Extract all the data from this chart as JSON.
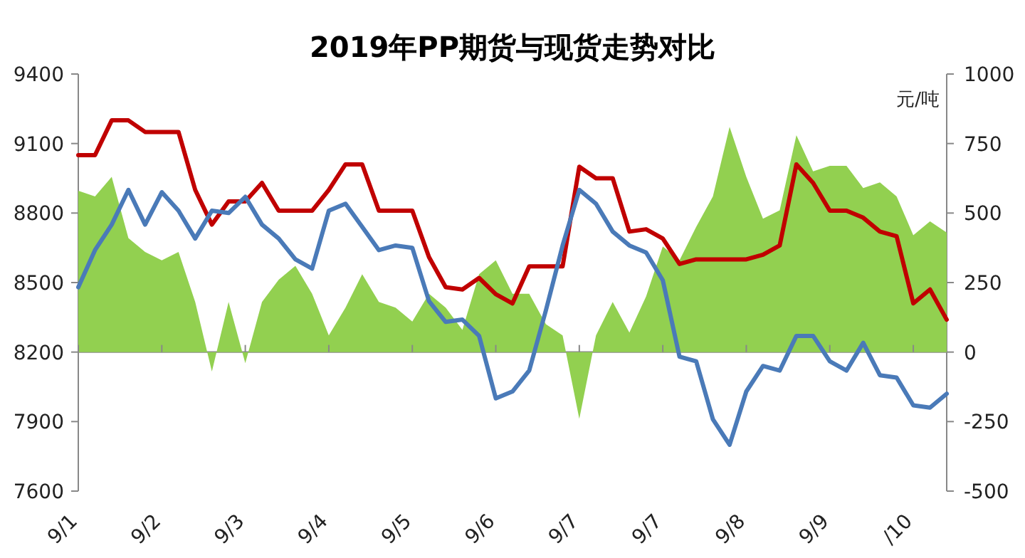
{
  "chart_data": {
    "type": "line",
    "title": "2019年PP期货与现货走势对比",
    "y2label": "元/吨",
    "categories": [
      "9/1",
      null,
      null,
      null,
      null,
      "9/2",
      null,
      null,
      null,
      null,
      "9/3",
      null,
      null,
      null,
      null,
      "9/4",
      null,
      null,
      null,
      null,
      "9/5",
      null,
      null,
      null,
      null,
      "9/6",
      null,
      null,
      null,
      null,
      "9/7",
      null,
      null,
      null,
      null,
      "9/7",
      null,
      null,
      null,
      null,
      "9/8",
      null,
      null,
      null,
      null,
      "9/9",
      null,
      null,
      null,
      null,
      "/10",
      null,
      null
    ],
    "ylim": [
      7600,
      9400
    ],
    "yticks": [
      7600,
      7900,
      8200,
      8500,
      8800,
      9100,
      9400
    ],
    "y2lim": [
      -500,
      1000
    ],
    "y2ticks": [
      -500,
      -250,
      0,
      250,
      500,
      750,
      1000
    ],
    "series": [
      {
        "type": "area",
        "axis": "y2",
        "color": "#92d050",
        "values": [
          580,
          560,
          630,
          410,
          360,
          330,
          360,
          180,
          -70,
          180,
          -40,
          180,
          260,
          310,
          210,
          60,
          160,
          280,
          180,
          160,
          110,
          210,
          160,
          80,
          280,
          330,
          210,
          210,
          100,
          60,
          -240,
          60,
          180,
          70,
          200,
          380,
          330,
          450,
          560,
          810,
          630,
          480,
          510,
          780,
          650,
          670,
          670,
          590,
          610,
          560,
          420,
          470,
          430
        ]
      },
      {
        "type": "line",
        "color": "#c00000",
        "values": [
          9050,
          9050,
          9200,
          9200,
          9150,
          9150,
          9150,
          8900,
          8750,
          8850,
          8850,
          8930,
          8810,
          8810,
          8810,
          8900,
          9010,
          9010,
          8810,
          8810,
          8810,
          8610,
          8480,
          8470,
          8520,
          8450,
          8410,
          8570,
          8570,
          8570,
          9000,
          8950,
          8950,
          8720,
          8730,
          8690,
          8580,
          8600,
          8600,
          8600,
          8600,
          8620,
          8660,
          9010,
          8930,
          8810,
          8810,
          8780,
          8720,
          8700,
          8410,
          8470,
          8340
        ]
      },
      {
        "type": "line",
        "color": "#4a7ab8",
        "values": [
          8480,
          8640,
          8750,
          8900,
          8750,
          8890,
          8810,
          8690,
          8810,
          8800,
          8870,
          8750,
          8690,
          8600,
          8560,
          8810,
          8840,
          8740,
          8640,
          8660,
          8650,
          8420,
          8330,
          8340,
          8270,
          8000,
          8030,
          8120,
          8380,
          8660,
          8900,
          8840,
          8720,
          8660,
          8630,
          8510,
          8180,
          8160,
          7910,
          7800,
          8030,
          8140,
          8120,
          8270,
          8270,
          8160,
          8120,
          8240,
          8100,
          8090,
          7970,
          7960,
          8020
        ]
      }
    ]
  }
}
